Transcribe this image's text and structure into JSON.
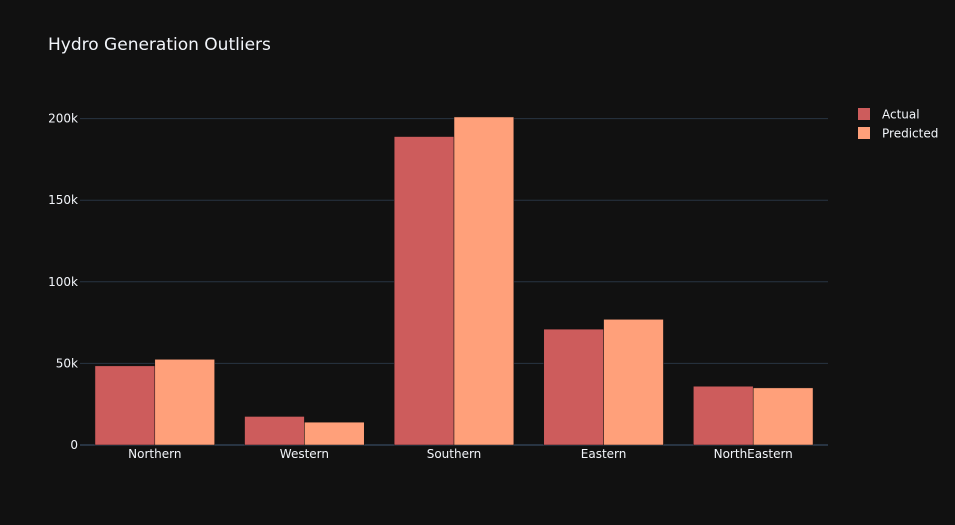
{
  "chart_data": {
    "type": "bar",
    "title": "Hydro Generation Outliers",
    "xlabel": "",
    "ylabel": "",
    "categories": [
      "Northern",
      "Western",
      "Southern",
      "Eastern",
      "NorthEastern"
    ],
    "series": [
      {
        "name": "Actual",
        "color": "#cd5c5c",
        "values": [
          48500,
          17500,
          189000,
          71000,
          36000
        ]
      },
      {
        "name": "Predicted",
        "color": "#ffa07a",
        "values": [
          52500,
          14000,
          201000,
          77000,
          35000
        ]
      }
    ],
    "ylim": [
      0,
      212000
    ],
    "yticks": [
      0,
      50000,
      100000,
      150000,
      200000
    ],
    "ytick_labels": [
      "0",
      "50k",
      "100k",
      "150k",
      "200k"
    ],
    "grid": true,
    "legend_position": "top-right",
    "colors": {
      "background": "#111111",
      "grid": "#283442",
      "text": "#f2f5fa"
    }
  }
}
